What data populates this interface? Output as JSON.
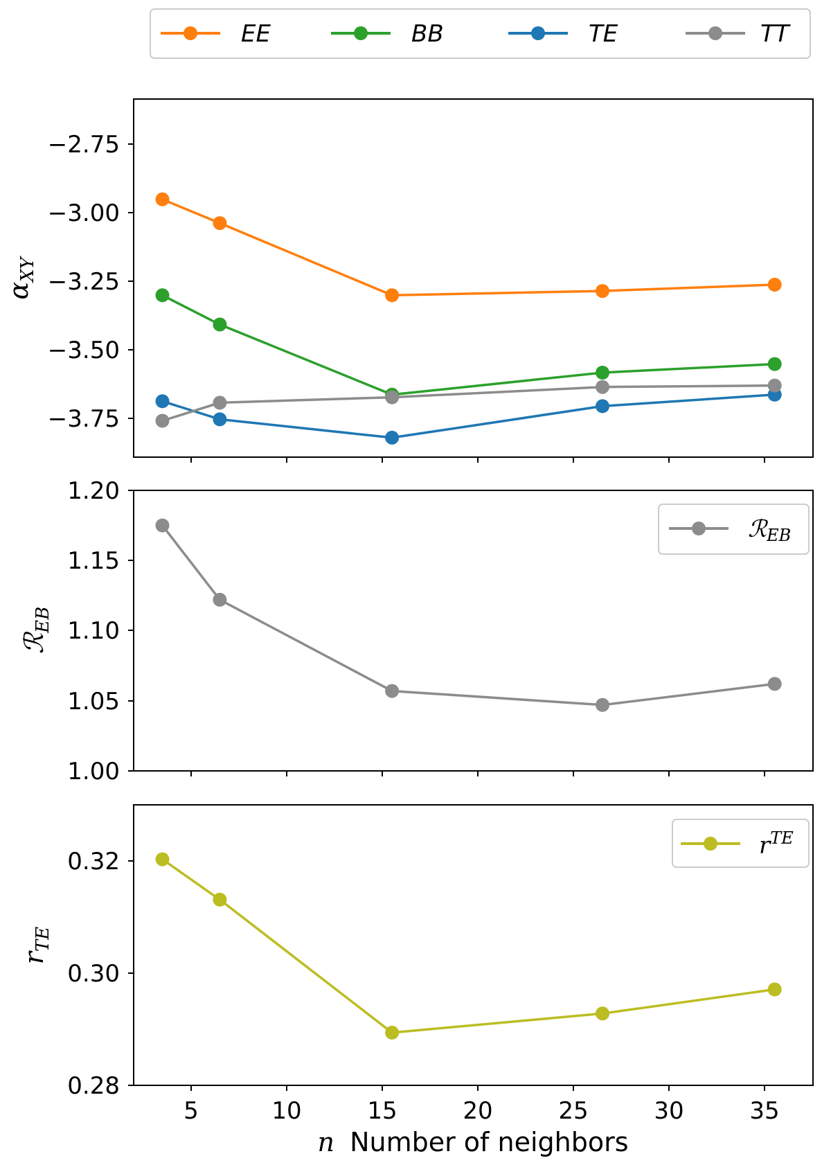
{
  "chart_data": [
    {
      "type": "line",
      "panel": "top",
      "ylabel_main": "α",
      "ylabel_sub": "XY",
      "xlim": [
        2.5,
        38.0
      ],
      "ylim": [
        -3.85,
        -2.6
      ],
      "yticks": [
        -2.75,
        -3.0,
        -3.25,
        -3.5,
        -3.75
      ],
      "ytick_labels": [
        "−2.75",
        "−3.00",
        "−3.25",
        "−3.50",
        "−3.75"
      ],
      "x": [
        4,
        7,
        16,
        27,
        36
      ],
      "series": [
        {
          "name": "EE",
          "color": "#ff7f0e",
          "values": [
            -2.95,
            -3.033,
            -3.285,
            -3.27,
            -3.248
          ]
        },
        {
          "name": "BB",
          "color": "#2ca02c",
          "values": [
            -3.285,
            -3.387,
            -3.632,
            -3.555,
            -3.525
          ]
        },
        {
          "name": "TE",
          "color": "#1f77b4",
          "values": [
            -3.655,
            -3.718,
            -3.782,
            -3.672,
            -3.632
          ]
        },
        {
          "name": "TT",
          "color": "#8c8c8c",
          "values": [
            -3.723,
            -3.66,
            -3.641,
            -3.605,
            -3.6
          ]
        }
      ],
      "legend": {
        "placement": "above",
        "entries": [
          "EE",
          "BB",
          "TE",
          "TT"
        ]
      }
    },
    {
      "type": "line",
      "panel": "middle",
      "ylabel_main": "ℛ",
      "ylabel_sub": "EB",
      "xlim": [
        2.5,
        38.0
      ],
      "ylim": [
        1.0,
        1.2
      ],
      "yticks": [
        1.2,
        1.15,
        1.1,
        1.05,
        1.0
      ],
      "ytick_labels": [
        "1.20",
        "1.15",
        "1.10",
        "1.05",
        "1.00"
      ],
      "x": [
        4,
        7,
        16,
        27,
        36
      ],
      "series": [
        {
          "name": "R_EB",
          "color": "#8c8c8c",
          "values": [
            1.175,
            1.122,
            1.057,
            1.047,
            1.062
          ]
        }
      ],
      "legend": {
        "placement": "top-right",
        "label_main": "ℛ",
        "label_sub": "EB"
      }
    },
    {
      "type": "line",
      "panel": "bottom",
      "ylabel_main": "r",
      "ylabel_sub": "TE",
      "xlabel_var": "n",
      "xlabel": "Number of neighbors",
      "xlim": [
        2.5,
        38.0
      ],
      "ylim": [
        0.28,
        0.33
      ],
      "xticks": [
        5,
        10,
        15,
        20,
        25,
        30,
        35
      ],
      "xtick_labels": [
        "5",
        "10",
        "15",
        "20",
        "25",
        "30",
        "35"
      ],
      "yticks": [
        0.32,
        0.3,
        0.28
      ],
      "ytick_labels": [
        "0.32",
        "0.30",
        "0.28"
      ],
      "x": [
        4,
        7,
        16,
        27,
        36
      ],
      "series": [
        {
          "name": "r_TE",
          "color": "#bcbd22",
          "values": [
            0.3203,
            0.3131,
            0.2894,
            0.2928,
            0.2971
          ]
        }
      ],
      "legend": {
        "placement": "top-right",
        "label_main": "r",
        "label_sup": "TE"
      }
    }
  ]
}
